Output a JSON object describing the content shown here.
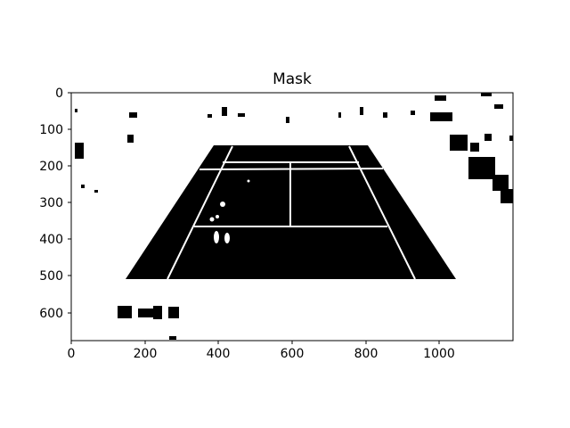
{
  "figure": {
    "title": "Mask",
    "x_ticks": [
      "0",
      "200",
      "400",
      "600",
      "800",
      "1000"
    ],
    "y_ticks": [
      "0",
      "100",
      "200",
      "300",
      "400",
      "500",
      "600"
    ],
    "x_range": [
      0,
      1200
    ],
    "y_range": [
      680,
      0
    ],
    "image_description": "binary mask of tennis court area"
  },
  "colors": {
    "foreground": "#000000",
    "background": "#ffffff"
  }
}
